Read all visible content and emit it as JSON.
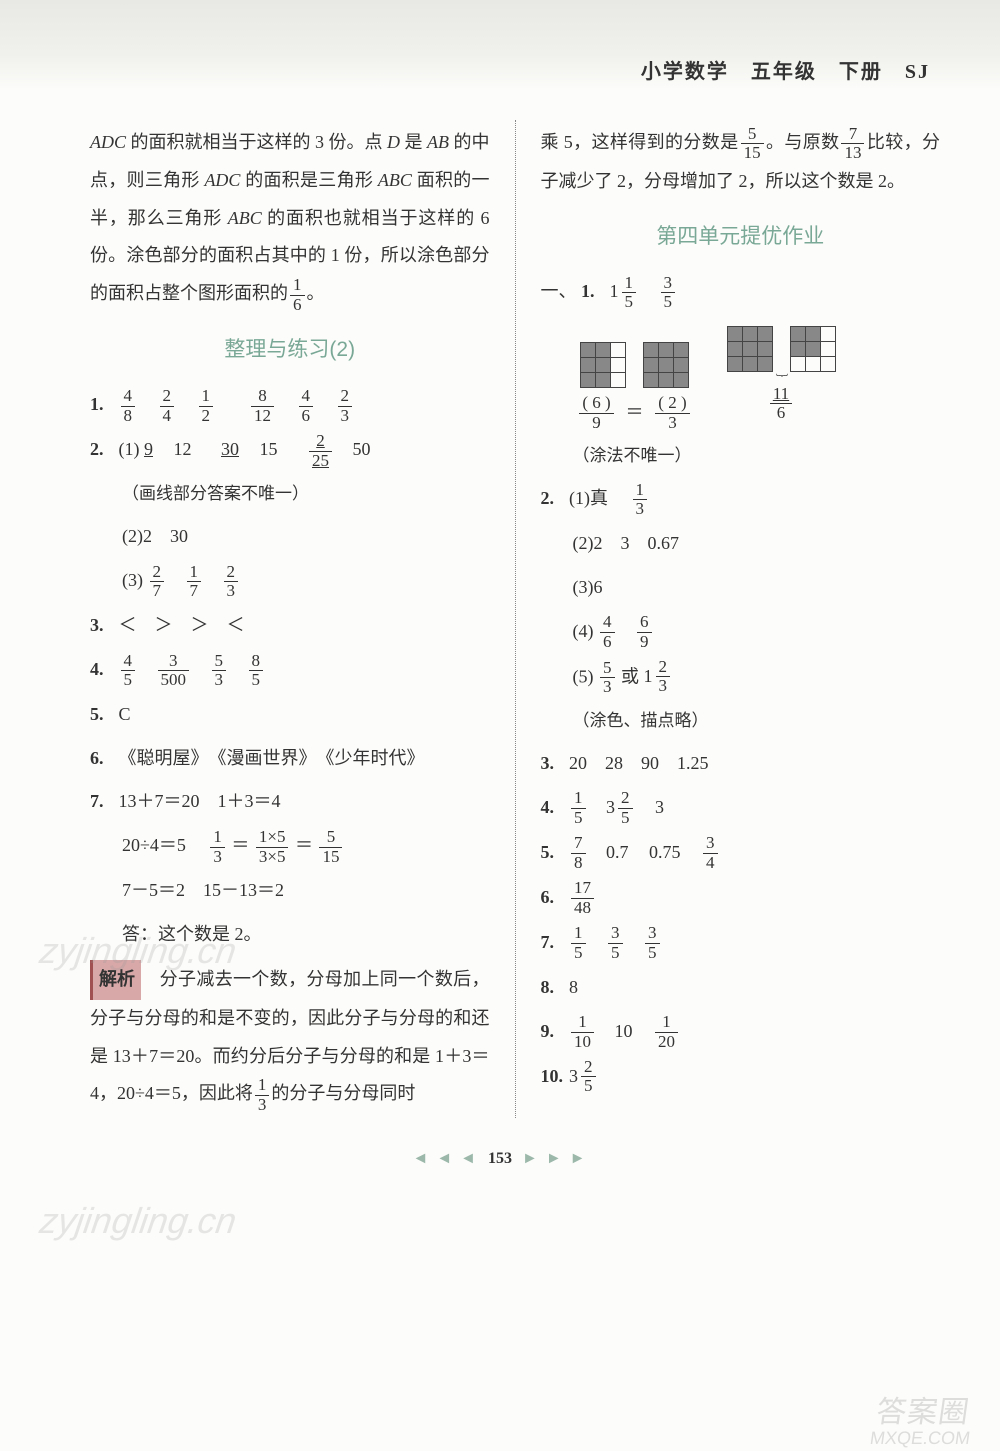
{
  "header": "小学数学　五年级　下册　SJ",
  "page_number": "153",
  "watermarks": {
    "wm": "zyjingling.cn",
    "wm2": "答案圈",
    "wm2b": "MXQE.COM"
  },
  "left": {
    "para1_a": "ADC",
    "para1_b": " 的面积就相当于这样的 3 份。点 ",
    "para1_c": "D",
    "para1_d": " 是 ",
    "para1_e": "AB",
    "para1_f": " 的中点，则三角形 ",
    "para1_g": "ADC",
    "para1_h": " 的面积是三角形 ",
    "para1_i": "ABC",
    "para1_j": " 面积的一半，那么三角形 ",
    "para1_k": "ABC",
    "para1_l": " 的面积也就相当于这样的 6 份。涂色部分的面积占其中的 1 份，所以涂色部分的面积占整个图形面积的",
    "frac_1_6": {
      "n": "1",
      "d": "6"
    },
    "para1_end": "。",
    "section2": "整理与练习(2)",
    "q1": {
      "num": "1.",
      "f": [
        {
          "n": "4",
          "d": "8"
        },
        {
          "n": "2",
          "d": "4"
        },
        {
          "n": "1",
          "d": "2"
        },
        {
          "n": "8",
          "d": "12"
        },
        {
          "n": "4",
          "d": "6"
        },
        {
          "n": "2",
          "d": "3"
        }
      ]
    },
    "q2": {
      "num": "2.",
      "s1_label": "(1)",
      "s1_vals": [
        "9",
        "12",
        "30",
        "15"
      ],
      "s1_frac": {
        "n": "2",
        "d": "25"
      },
      "s1_last": "50",
      "note": "（画线部分答案不唯一）",
      "s2": "(2)2　30",
      "s3_label": "(3)",
      "s3_f": [
        {
          "n": "2",
          "d": "7"
        },
        {
          "n": "1",
          "d": "7"
        },
        {
          "n": "2",
          "d": "3"
        }
      ]
    },
    "q3": {
      "num": "3.",
      "text": "＜　＞　＞　＜"
    },
    "q4": {
      "num": "4.",
      "f": [
        {
          "n": "4",
          "d": "5"
        },
        {
          "n": "3",
          "d": "500"
        },
        {
          "n": "5",
          "d": "3"
        },
        {
          "n": "8",
          "d": "5"
        }
      ]
    },
    "q5": {
      "num": "5.",
      "text": "C"
    },
    "q6": {
      "num": "6.",
      "text": "《聪明屋》　《漫画世界》　《少年时代》"
    },
    "q7": {
      "num": "7.",
      "line1": "13＋7＝20　1＋3＝4",
      "line2a": "20÷4＝5　",
      "line2_f1": {
        "n": "1",
        "d": "3"
      },
      "line2b": "＝",
      "line2_f2": {
        "n": "1×5",
        "d": "3×5"
      },
      "line2c": "＝",
      "line2_f3": {
        "n": "5",
        "d": "15"
      },
      "line3": "7－5＝2　15－13＝2",
      "line4": "答：这个数是 2。"
    },
    "analysis": {
      "label": "解析",
      "t1": "　分子减去一个数，分母加上同一个数后，分子与分母的和是不变的，因此分子与分母的和还是 13＋7＝20。而约分后分子与分母的和是 1＋3＝4，20÷4＝5，因此将",
      "f": {
        "n": "1",
        "d": "3"
      },
      "t2": "的分子与分母同时"
    }
  },
  "right": {
    "cont_a": "乘 5，这样得到的分数是",
    "cont_f1": {
      "n": "5",
      "d": "15"
    },
    "cont_b": "。与原数",
    "cont_f2": {
      "n": "7",
      "d": "13"
    },
    "cont_c": "比较，分子减少了 2，分母增加了 2，所以这个数是 2。",
    "section": "第四单元提优作业",
    "yi": "一、",
    "q1": {
      "num": "1.",
      "m1": {
        "w": "1",
        "n": "1",
        "d": "5"
      },
      "f2": {
        "n": "3",
        "d": "5"
      },
      "eq_l": {
        "n": "( 6 )",
        "d": "9"
      },
      "eq_r": {
        "n": "( 2 )",
        "d": "3"
      },
      "eq_far": {
        "n": "11",
        "d": "6"
      },
      "note": "（涂法不唯一）"
    },
    "q2": {
      "num": "2.",
      "s1_label": "(1)真　",
      "s1_f": {
        "n": "1",
        "d": "3"
      },
      "s2": "(2)2　3　0.67",
      "s3": "(3)6",
      "s4_label": "(4)",
      "s4_f": [
        {
          "n": "4",
          "d": "6"
        },
        {
          "n": "6",
          "d": "9"
        }
      ],
      "s5_label": "(5)",
      "s5_f1": {
        "n": "5",
        "d": "3"
      },
      "s5_or": "或 ",
      "s5_m": {
        "w": "1",
        "n": "2",
        "d": "3"
      },
      "note": "（涂色、描点略）"
    },
    "q3": {
      "num": "3.",
      "text": "20　28　90　1.25"
    },
    "q4": {
      "num": "4.",
      "f1": {
        "n": "1",
        "d": "5"
      },
      "m": {
        "w": "3",
        "n": "2",
        "d": "5"
      },
      "last": "3"
    },
    "q5": {
      "num": "5.",
      "f1": {
        "n": "7",
        "d": "8"
      },
      "v": [
        "0.7",
        "0.75"
      ],
      "f2": {
        "n": "3",
        "d": "4"
      }
    },
    "q6": {
      "num": "6.",
      "f": {
        "n": "17",
        "d": "48"
      }
    },
    "q7": {
      "num": "7.",
      "f": [
        {
          "n": "1",
          "d": "5"
        },
        {
          "n": "3",
          "d": "5"
        },
        {
          "n": "3",
          "d": "5"
        }
      ]
    },
    "q8": {
      "num": "8.",
      "text": "8"
    },
    "q9": {
      "num": "9.",
      "f1": {
        "n": "1",
        "d": "10"
      },
      "mid": "10",
      "f2": {
        "n": "1",
        "d": "20"
      }
    },
    "q10": {
      "num": "10.",
      "m": {
        "w": "3",
        "n": "2",
        "d": "5"
      }
    }
  }
}
